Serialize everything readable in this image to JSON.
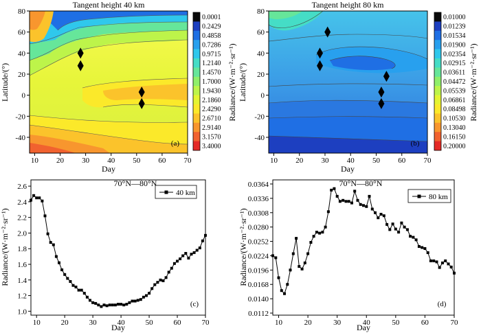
{
  "chart_data": [
    {
      "panel": "(a)",
      "type": "heatmap",
      "title": "Tangent height 40 km",
      "xlabel": "Day",
      "ylabel": "Latitude/(°)",
      "xlim": [
        8,
        70
      ],
      "ylim": [
        -55,
        80
      ],
      "xticks": [
        10,
        20,
        30,
        40,
        50,
        60,
        70
      ],
      "yticks": [
        -40,
        -20,
        0,
        20,
        40,
        60,
        80
      ],
      "colorbar_label": "Radiance/(W·m⁻²·sr⁻¹)",
      "colorbar_levels": [
        "0.0001",
        "0.2429",
        "0.4858",
        "0.7286",
        "0.9715",
        "1.2140",
        "1.4570",
        "1.7000",
        "1.9430",
        "2.1860",
        "2.4290",
        "2.6710",
        "2.9140",
        "3.1570",
        "3.4000"
      ],
      "colorbar_colors": [
        "#0a0a0a",
        "#1d3fc0",
        "#1f6fe4",
        "#28a0ee",
        "#2fc8ec",
        "#45ddc6",
        "#66e69a",
        "#8fef6a",
        "#bdf44a",
        "#e4f432",
        "#fbe92a",
        "#fbc32b",
        "#f8962e",
        "#f1622f",
        "#e52a26"
      ],
      "markers": [
        {
          "day": 28,
          "lat": 40
        },
        {
          "day": 28,
          "lat": 28
        },
        {
          "day": 52,
          "lat": 3
        },
        {
          "day": 52,
          "lat": -8
        }
      ]
    },
    {
      "panel": "(b)",
      "type": "heatmap",
      "title": "Tangent height 80 km",
      "xlabel": "Day",
      "ylabel": "Latitude/(°)",
      "xlim": [
        8,
        70
      ],
      "ylim": [
        -55,
        80
      ],
      "xticks": [
        10,
        20,
        30,
        40,
        50,
        60,
        70
      ],
      "yticks": [
        -40,
        -20,
        0,
        20,
        40,
        60,
        80
      ],
      "colorbar_label": "Radiance/(W·m⁻²·sr⁻¹)",
      "colorbar_levels": [
        "0.01000",
        "0.01239",
        "0.01534",
        "0.01900",
        "0.02354",
        "0.02915",
        "0.03611",
        "0.04472",
        "0.05539",
        "0.06861",
        "0.08498",
        "0.10530",
        "0.13040",
        "0.16150",
        "0.20000"
      ],
      "colorbar_colors": [
        "#0a0a0a",
        "#1d3fc0",
        "#1f6fe4",
        "#28a0ee",
        "#2fc8ec",
        "#45ddc6",
        "#66e69a",
        "#8fef6a",
        "#bdf44a",
        "#e4f432",
        "#fbe92a",
        "#fbc32b",
        "#f8962e",
        "#f1622f",
        "#e52a26"
      ],
      "markers": [
        {
          "day": 28,
          "lat": 40
        },
        {
          "day": 28,
          "lat": 28
        },
        {
          "day": 31,
          "lat": 60
        },
        {
          "day": 54,
          "lat": 18
        },
        {
          "day": 52,
          "lat": 3
        },
        {
          "day": 52,
          "lat": -8
        }
      ]
    },
    {
      "panel": "(c)",
      "type": "line",
      "title": "70°N—80°N",
      "xlabel": "Day",
      "ylabel": "Radiance/(W·m⁻²·sr⁻¹)",
      "xlim": [
        8,
        70
      ],
      "ylim": [
        0.95,
        2.68
      ],
      "xticks": [
        10,
        20,
        30,
        40,
        50,
        60,
        70
      ],
      "yticks": [
        "1.0",
        "1.2",
        "1.4",
        "1.6",
        "1.8",
        "2.0",
        "2.2",
        "2.4",
        "2.6"
      ],
      "legend": "40 km",
      "series": [
        {
          "name": "40 km",
          "x": [
            8,
            9,
            10,
            11,
            12,
            13,
            14,
            15,
            16,
            17,
            18,
            19,
            20,
            21,
            22,
            23,
            24,
            25,
            26,
            27,
            28,
            29,
            30,
            31,
            32,
            33,
            34,
            35,
            36,
            37,
            38,
            39,
            40,
            41,
            42,
            43,
            44,
            45,
            46,
            47,
            48,
            49,
            50,
            51,
            52,
            53,
            54,
            55,
            56,
            57,
            58,
            59,
            60,
            61,
            62,
            63,
            64,
            65,
            66,
            67,
            68,
            69,
            70
          ],
          "y": [
            2.42,
            2.48,
            2.45,
            2.45,
            2.41,
            2.22,
            1.99,
            1.88,
            1.85,
            1.7,
            1.62,
            1.53,
            1.47,
            1.42,
            1.38,
            1.33,
            1.31,
            1.27,
            1.27,
            1.23,
            1.18,
            1.14,
            1.11,
            1.1,
            1.08,
            1.06,
            1.08,
            1.07,
            1.08,
            1.08,
            1.08,
            1.09,
            1.09,
            1.08,
            1.09,
            1.11,
            1.13,
            1.13,
            1.14,
            1.15,
            1.18,
            1.2,
            1.23,
            1.29,
            1.34,
            1.37,
            1.4,
            1.39,
            1.43,
            1.5,
            1.55,
            1.61,
            1.64,
            1.67,
            1.71,
            1.74,
            1.68,
            1.73,
            1.75,
            1.78,
            1.81,
            1.9,
            1.97
          ]
        }
      ]
    },
    {
      "panel": "(d)",
      "type": "line",
      "title": "70°N—80°N",
      "xlabel": "Day",
      "ylabel": "Radiance/(W·m⁻²·sr⁻¹)",
      "xlim": [
        8,
        70
      ],
      "ylim": [
        0.0108,
        0.0372
      ],
      "xticks": [
        10,
        20,
        30,
        40,
        50,
        60,
        70
      ],
      "yticks": [
        "0.0112",
        "0.0140",
        "0.0168",
        "0.0196",
        "0.0224",
        "0.0252",
        "0.0280",
        "0.0308",
        "0.0336",
        "0.0364"
      ],
      "legend": "80 km",
      "series": [
        {
          "name": "80 km",
          "x": [
            8,
            9,
            10,
            11,
            12,
            13,
            14,
            15,
            16,
            17,
            18,
            19,
            20,
            21,
            22,
            23,
            24,
            25,
            26,
            27,
            28,
            29,
            30,
            31,
            32,
            33,
            34,
            35,
            36,
            37,
            38,
            39,
            40,
            41,
            42,
            43,
            44,
            45,
            46,
            47,
            48,
            49,
            50,
            51,
            52,
            53,
            54,
            55,
            56,
            57,
            58,
            59,
            60,
            61,
            62,
            63,
            64,
            65,
            66,
            67,
            68,
            69,
            70
          ],
          "y": [
            0.0224,
            0.022,
            0.0181,
            0.0156,
            0.015,
            0.0168,
            0.0196,
            0.0228,
            0.0258,
            0.0203,
            0.0198,
            0.021,
            0.0228,
            0.025,
            0.0262,
            0.027,
            0.0268,
            0.027,
            0.028,
            0.031,
            0.0352,
            0.0355,
            0.034,
            0.033,
            0.0332,
            0.033,
            0.033,
            0.0327,
            0.035,
            0.0332,
            0.0324,
            0.0322,
            0.032,
            0.034,
            0.0315,
            0.0308,
            0.0298,
            0.0305,
            0.0302,
            0.0285,
            0.0275,
            0.0286,
            0.0276,
            0.027,
            0.0288,
            0.028,
            0.0275,
            0.0262,
            0.026,
            0.0255,
            0.0242,
            0.024,
            0.0238,
            0.023,
            0.0214,
            0.0214,
            0.0212,
            0.0201,
            0.021,
            0.0214,
            0.0208,
            0.0202,
            0.019
          ]
        }
      ]
    }
  ]
}
